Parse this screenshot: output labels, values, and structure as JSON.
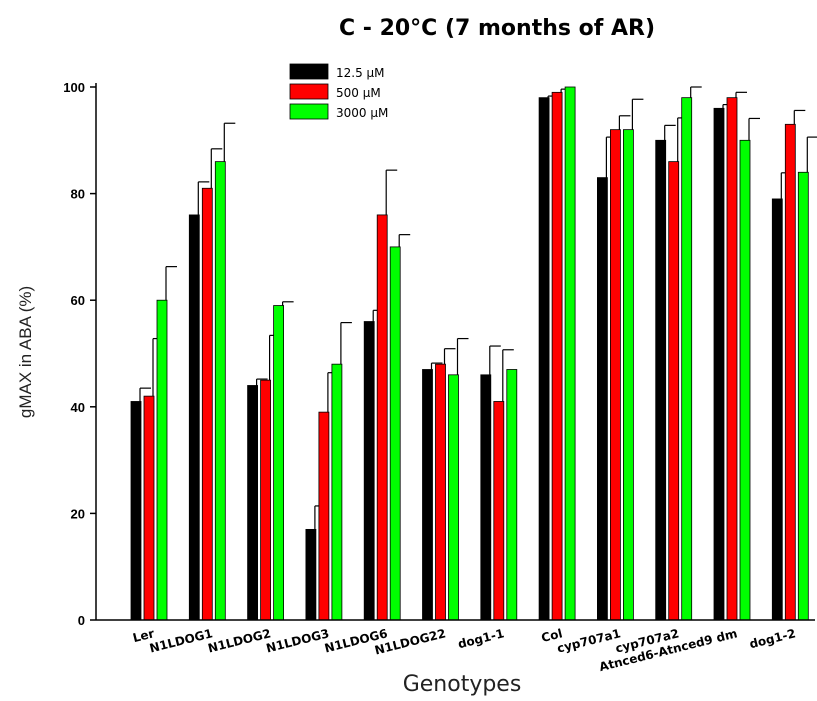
{
  "chart_data": {
    "type": "bar",
    "title": "C - 20°C (7 months of AR)",
    "xlabel": "Genotypes",
    "ylabel": "gMAX in ABA (%)",
    "ylim": [
      0,
      100
    ],
    "yticks": [
      "0",
      "20",
      "40",
      "60",
      "80",
      "100"
    ],
    "grid": false,
    "legend_position": "top-center",
    "categories": [
      "Ler",
      "N1LDOG1",
      "N1LDOG2",
      "N1LDOG3",
      "N1LDOG6",
      "N1LDOG22",
      "dog1-1",
      "Col",
      "cyp707a1",
      "cyp707a2",
      "Atnced6-Atnced9 dm",
      "dog1-2"
    ],
    "series": [
      {
        "name": "12.5 µM",
        "color": "#000000",
        "values": [
          41,
          76,
          44,
          17,
          56,
          47,
          46,
          98,
          83,
          90,
          96,
          79
        ],
        "errors": [
          2.5,
          6.2,
          1.2,
          4.4,
          2.1,
          1.2,
          5.4,
          0.3,
          7.6,
          2.8,
          0.7,
          4.9
        ]
      },
      {
        "name": "500 µM",
        "color": "#ff0000",
        "values": [
          42,
          81,
          45,
          39,
          76,
          48,
          41,
          99,
          92,
          86,
          98,
          93
        ],
        "errors": [
          10.8,
          7.4,
          8.4,
          7.4,
          8.4,
          2.9,
          9.7,
          0.6,
          2.6,
          8.2,
          1.0,
          2.6
        ]
      },
      {
        "name": "3000 µM",
        "color": "#00ff00",
        "values": [
          60,
          86,
          59,
          48,
          70,
          46,
          47,
          100,
          92,
          98,
          90,
          84
        ],
        "errors": [
          6.3,
          7.2,
          0.7,
          7.8,
          2.3,
          6.8,
          0,
          0,
          5.7,
          2.0,
          4.1,
          6.6
        ]
      }
    ]
  }
}
